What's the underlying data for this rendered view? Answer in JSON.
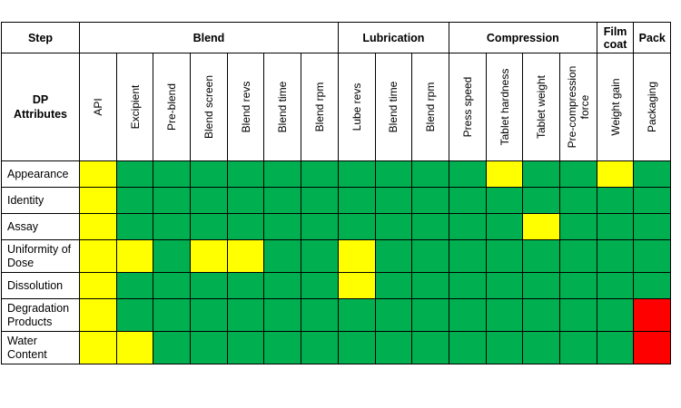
{
  "header": {
    "step_label": "Step",
    "dp_label_line1": "DP",
    "dp_label_line2": "Attributes",
    "groups": [
      {
        "label": "Blend",
        "span": 7
      },
      {
        "label": "Lubrication",
        "span": 3
      },
      {
        "label": "Compression",
        "span": 4
      },
      {
        "label": "Film\ncoat",
        "span": 1
      },
      {
        "label": "Pack",
        "span": 1
      }
    ],
    "columns": [
      "API",
      "Excipient",
      "Pre-blend",
      "Blend screen",
      "Blend revs",
      "Blend time",
      "Blend rpm",
      "Lube revs",
      "Blend time",
      "Blend rpm",
      "Press speed",
      "Tablet hardness",
      "Tablet weight",
      "Pre-compression force",
      "Weight gain",
      "Packaging"
    ]
  },
  "colors": {
    "Y": "#ffff00",
    "G": "#00b050",
    "R": "#ff0000"
  },
  "rows": [
    {
      "attribute": "Appearance",
      "cells": [
        "Y",
        "G",
        "G",
        "G",
        "G",
        "G",
        "G",
        "G",
        "G",
        "G",
        "G",
        "Y",
        "G",
        "G",
        "Y",
        "G"
      ]
    },
    {
      "attribute": "Identity",
      "cells": [
        "Y",
        "G",
        "G",
        "G",
        "G",
        "G",
        "G",
        "G",
        "G",
        "G",
        "G",
        "G",
        "G",
        "G",
        "G",
        "G"
      ]
    },
    {
      "attribute": "Assay",
      "cells": [
        "Y",
        "G",
        "G",
        "G",
        "G",
        "G",
        "G",
        "G",
        "G",
        "G",
        "G",
        "G",
        "Y",
        "G",
        "G",
        "G"
      ]
    },
    {
      "attribute": "Uniformity of Dose",
      "cells": [
        "Y",
        "Y",
        "G",
        "Y",
        "Y",
        "G",
        "G",
        "Y",
        "G",
        "G",
        "G",
        "G",
        "G",
        "G",
        "G",
        "G"
      ]
    },
    {
      "attribute": "Dissolution",
      "cells": [
        "Y",
        "G",
        "G",
        "G",
        "G",
        "G",
        "G",
        "Y",
        "G",
        "G",
        "G",
        "G",
        "G",
        "G",
        "G",
        "G"
      ]
    },
    {
      "attribute": "Degradation Products",
      "cells": [
        "Y",
        "G",
        "G",
        "G",
        "G",
        "G",
        "G",
        "G",
        "G",
        "G",
        "G",
        "G",
        "G",
        "G",
        "G",
        "R"
      ]
    },
    {
      "attribute": "Water Content",
      "cells": [
        "Y",
        "Y",
        "G",
        "G",
        "G",
        "G",
        "G",
        "G",
        "G",
        "G",
        "G",
        "G",
        "G",
        "G",
        "G",
        "R"
      ]
    }
  ]
}
